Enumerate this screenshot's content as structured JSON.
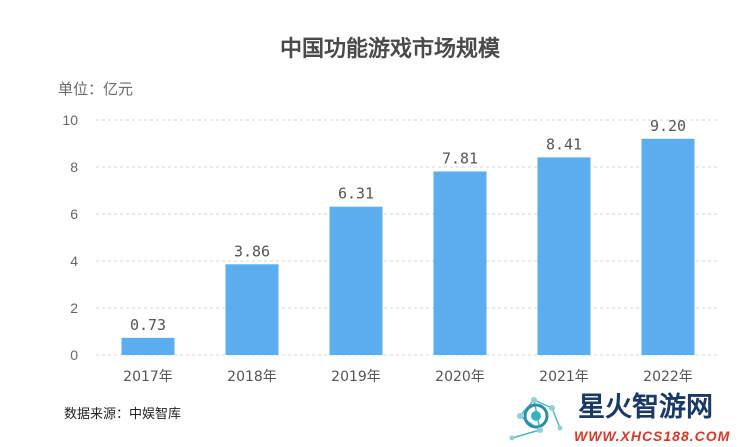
{
  "chart_data": {
    "type": "bar",
    "title": "中国功能游戏市场规模",
    "unit_label": "单位：亿元",
    "categories": [
      "2017年",
      "2018年",
      "2019年",
      "2020年",
      "2021年",
      "2022年"
    ],
    "values": [
      0.73,
      3.86,
      6.31,
      7.81,
      8.41,
      9.2
    ],
    "value_labels": [
      "0.73",
      "3.86",
      "6.31",
      "7.81",
      "8.41",
      "9.20"
    ],
    "ylim": [
      0,
      10
    ],
    "yticks": [
      0,
      2,
      4,
      6,
      8,
      10
    ],
    "ytick_labels": [
      "0",
      "2",
      "4",
      "6",
      "8",
      "10"
    ],
    "grid": true,
    "bar_color": "#5aaef0",
    "grid_color": "#d4d4d4",
    "source": "数据来源：中娱智库"
  },
  "watermark": {
    "text": "星火智游网",
    "url": "WWW.XHCS188.COM",
    "icon": "network-nodes-icon"
  }
}
